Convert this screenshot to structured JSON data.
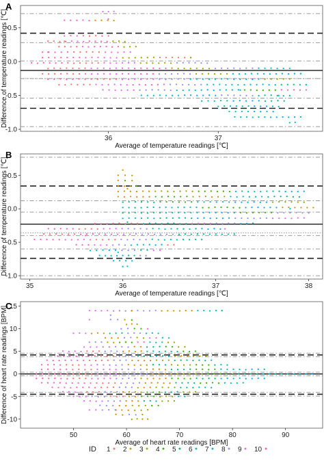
{
  "colors": {
    "ids": [
      "#F8766D",
      "#D89000",
      "#A3A500",
      "#39B600",
      "#00BF7D",
      "#00BFC4",
      "#00B0F6",
      "#9590FF",
      "#E76BF3",
      "#FF62BC"
    ],
    "mean_line": "#000000",
    "loa_line": "#222222",
    "ci_line": "#999999"
  },
  "legend": {
    "title": "ID",
    "labels": [
      "1",
      "2",
      "3",
      "4",
      "5",
      "6",
      "7",
      "8",
      "9",
      "10"
    ]
  },
  "chart_data": [
    {
      "panel": "A",
      "type": "scatter",
      "xlabel": "Average of temperature readings [℃]",
      "ylabel": "Difference of temperature readings [℃]",
      "xlim": [
        35.2,
        37.95
      ],
      "ylim": [
        -1.03,
        0.83
      ],
      "xticks": [
        36,
        37
      ],
      "yticks": [
        0.5,
        0.0,
        -0.5,
        -1.0
      ],
      "ytick_labels": [
        "0.5",
        "0.0",
        "-0.5",
        "-1.0"
      ],
      "lines": {
        "mean": -0.13,
        "loa": [
          0.42,
          -0.69
        ],
        "ci": [
          0.71,
          0.28,
          0.01,
          -0.25,
          -0.54,
          -0.96
        ],
        "mid_dotted": -0.25
      },
      "clusters": [
        {
          "x": 35.45,
          "y": 0.14,
          "id": 10
        },
        {
          "x": 35.6,
          "y": 0.3,
          "id": 1
        },
        {
          "x": 36.0,
          "y": 0.63,
          "id": 9
        },
        {
          "x": 36.75,
          "y": 0.06,
          "id": 3
        },
        {
          "x": 37.2,
          "y": -0.42,
          "id": 6
        },
        {
          "x": 37.55,
          "y": -0.5,
          "id": 7
        }
      ],
      "marker_rows": [
        {
          "y": 0.74,
          "from": 35.95,
          "to": 36.05,
          "ids": [
            9
          ]
        },
        {
          "y": 0.61,
          "from": 35.6,
          "to": 36.05,
          "ids": [
            10,
            2
          ]
        },
        {
          "y": 0.38,
          "from": 35.6,
          "to": 36.0,
          "ids": [
            9,
            1,
            10
          ]
        },
        {
          "y": 0.3,
          "from": 35.45,
          "to": 36.15,
          "ids": [
            1,
            9,
            10,
            3
          ]
        },
        {
          "y": 0.22,
          "from": 35.55,
          "to": 36.25,
          "ids": [
            1,
            9,
            10,
            3
          ]
        },
        {
          "y": 0.14,
          "from": 35.4,
          "to": 36.2,
          "ids": [
            10,
            1,
            9
          ]
        },
        {
          "y": 0.06,
          "from": 35.4,
          "to": 36.75,
          "ids": [
            10,
            9,
            3,
            1
          ]
        },
        {
          "y": -0.02,
          "from": 35.3,
          "to": 36.9,
          "ids": [
            10,
            1,
            9,
            3,
            8
          ]
        },
        {
          "y": -0.1,
          "from": 35.45,
          "to": 37.65,
          "ids": [
            1,
            9,
            10,
            3,
            8,
            6
          ]
        },
        {
          "y": -0.18,
          "from": 35.4,
          "to": 37.75,
          "ids": [
            1,
            9,
            10,
            8,
            3,
            6,
            7
          ]
        },
        {
          "y": -0.26,
          "from": 35.45,
          "to": 37.65,
          "ids": [
            10,
            1,
            9,
            8,
            6,
            7,
            3
          ]
        },
        {
          "y": -0.34,
          "from": 35.55,
          "to": 37.8,
          "ids": [
            1,
            9,
            10,
            8,
            6,
            7,
            5
          ]
        },
        {
          "y": -0.42,
          "from": 35.95,
          "to": 37.8,
          "ids": [
            9,
            8,
            6,
            7,
            4,
            10
          ]
        },
        {
          "y": -0.5,
          "from": 36.3,
          "to": 37.65,
          "ids": [
            6,
            7,
            8,
            5
          ]
        },
        {
          "y": -0.58,
          "from": 36.85,
          "to": 37.6,
          "ids": [
            6,
            7,
            5
          ]
        },
        {
          "y": -0.66,
          "from": 37.0,
          "to": 37.55,
          "ids": [
            6,
            7
          ]
        },
        {
          "y": -0.74,
          "from": 37.1,
          "to": 37.5,
          "ids": [
            6,
            7
          ]
        },
        {
          "y": -0.82,
          "from": 37.15,
          "to": 37.75,
          "ids": [
            6,
            7
          ]
        },
        {
          "y": -0.9,
          "from": 37.65,
          "to": 37.7,
          "ids": [
            6
          ]
        }
      ]
    },
    {
      "panel": "B",
      "type": "scatter",
      "xlabel": "Average of temperature readings [℃]",
      "ylabel": "Difference of temperature readings [℃]",
      "xlim": [
        34.9,
        38.15
      ],
      "ylim": [
        -1.05,
        0.82
      ],
      "xticks": [
        35,
        36,
        37,
        38
      ],
      "yticks": [
        0.5,
        0.0,
        -0.5,
        -1.0
      ],
      "ytick_labels": [
        "0.5",
        "0.0",
        "-0.5",
        "-1.0"
      ],
      "lines": {
        "mean": -0.23,
        "loa": [
          0.34,
          -0.74
        ],
        "ci": [
          0.77,
          0.12,
          -0.05,
          -0.4,
          -0.6,
          -1.0
        ],
        "mid_dotted": -0.36
      },
      "clusters": [
        {
          "x": 36.05,
          "y": 0.3,
          "id": 2
        },
        {
          "x": 36.05,
          "y": -0.2,
          "id": 5
        },
        {
          "x": 35.6,
          "y": -0.4,
          "id": 10
        },
        {
          "x": 35.95,
          "y": -0.65,
          "id": 6
        },
        {
          "x": 37.8,
          "y": 0.0,
          "id": 6
        },
        {
          "x": 37.1,
          "y": -0.3,
          "id": 9
        }
      ],
      "marker_rows": [
        {
          "y": 0.58,
          "from": 36.0,
          "to": 36.0,
          "ids": [
            2
          ]
        },
        {
          "y": 0.5,
          "from": 35.95,
          "to": 36.1,
          "ids": [
            2,
            3
          ]
        },
        {
          "y": 0.42,
          "from": 35.95,
          "to": 36.1,
          "ids": [
            2,
            4,
            3
          ]
        },
        {
          "y": 0.34,
          "from": 35.95,
          "to": 36.15,
          "ids": [
            2,
            3,
            4
          ]
        },
        {
          "y": 0.26,
          "from": 35.95,
          "to": 37.95,
          "ids": [
            2,
            3,
            4,
            6,
            7
          ]
        },
        {
          "y": 0.18,
          "from": 35.95,
          "to": 37.9,
          "ids": [
            2,
            4,
            3,
            6,
            5
          ]
        },
        {
          "y": 0.1,
          "from": 36.0,
          "to": 37.95,
          "ids": [
            5,
            4,
            6,
            7,
            3
          ]
        },
        {
          "y": 0.02,
          "from": 36.0,
          "to": 38.05,
          "ids": [
            5,
            6,
            4,
            7,
            2
          ]
        },
        {
          "y": -0.06,
          "from": 36.0,
          "to": 38.0,
          "ids": [
            5,
            6,
            7,
            4,
            8
          ]
        },
        {
          "y": -0.14,
          "from": 36.0,
          "to": 37.95,
          "ids": [
            6,
            5,
            7,
            8,
            9
          ]
        },
        {
          "y": -0.22,
          "from": 35.7,
          "to": 37.4,
          "ids": [
            10,
            1,
            6,
            5,
            9,
            8,
            7
          ]
        },
        {
          "y": -0.3,
          "from": 35.2,
          "to": 37.05,
          "ids": [
            10,
            1,
            9,
            8,
            6,
            5,
            7
          ]
        },
        {
          "y": -0.38,
          "from": 35.15,
          "to": 37.2,
          "ids": [
            1,
            10,
            9,
            8,
            5,
            6
          ]
        },
        {
          "y": -0.46,
          "from": 35.05,
          "to": 36.85,
          "ids": [
            10,
            9,
            1,
            8,
            6,
            5
          ]
        },
        {
          "y": -0.54,
          "from": 35.5,
          "to": 36.55,
          "ids": [
            10,
            9,
            8,
            6,
            7,
            1
          ]
        },
        {
          "y": -0.62,
          "from": 35.65,
          "to": 36.4,
          "ids": [
            6,
            7,
            8,
            5,
            9
          ]
        },
        {
          "y": -0.7,
          "from": 35.75,
          "to": 36.25,
          "ids": [
            6,
            7,
            5,
            8
          ]
        },
        {
          "y": -0.78,
          "from": 35.9,
          "to": 36.1,
          "ids": [
            6,
            7
          ]
        },
        {
          "y": -0.86,
          "from": 36.0,
          "to": 36.05,
          "ids": [
            6
          ]
        }
      ]
    },
    {
      "panel": "C",
      "type": "scatter",
      "xlabel": "Average of heart rate readings [BPM]",
      "ylabel": "Difference of heart rate readings [BPM]",
      "xlim": [
        40,
        97
      ],
      "ylim": [
        -12,
        16
      ],
      "xticks": [
        50,
        60,
        70,
        80,
        90
      ],
      "yticks": [
        15,
        10,
        5,
        0,
        -5,
        -10
      ],
      "ytick_labels": [
        "15",
        "10",
        "5",
        "0",
        "-5",
        "-10"
      ],
      "lines": {
        "mean": 0.0,
        "loa": [
          4.2,
          -4.5
        ],
        "ci": [
          4.6,
          3.8,
          0.4,
          -0.4,
          -4.1,
          -4.9
        ],
        "mid_dotted": 0.0
      },
      "clusters": [
        {
          "x": 61,
          "y": 14,
          "id": 2
        },
        {
          "x": 57,
          "y": 13,
          "id": 8
        },
        {
          "x": 53,
          "y": 12,
          "id": 9
        },
        {
          "x": 78,
          "y": 14,
          "id": 6
        },
        {
          "x": 58,
          "y": -8,
          "id": 2
        },
        {
          "x": 64,
          "y": -10,
          "id": 3
        }
      ],
      "marker_rows": [
        {
          "y": 14,
          "from": 53,
          "to": 78,
          "ids": [
            9,
            8,
            2,
            6
          ]
        },
        {
          "y": 12,
          "from": 57,
          "to": 61,
          "ids": [
            8,
            2,
            4
          ]
        },
        {
          "y": 11,
          "from": 60,
          "to": 62,
          "ids": [
            2,
            3
          ]
        },
        {
          "y": 10,
          "from": 59,
          "to": 64,
          "ids": [
            8,
            4,
            9
          ]
        },
        {
          "y": 9,
          "from": 50,
          "to": 66,
          "ids": [
            9,
            2,
            5,
            8,
            6
          ]
        },
        {
          "y": 8,
          "from": 56,
          "to": 68,
          "ids": [
            2,
            8,
            3,
            9,
            6
          ]
        },
        {
          "y": 7,
          "from": 53,
          "to": 69,
          "ids": [
            8,
            2,
            4,
            9,
            6,
            3
          ]
        },
        {
          "y": 6,
          "from": 52,
          "to": 71,
          "ids": [
            9,
            1,
            8,
            2,
            5,
            4,
            3
          ]
        },
        {
          "y": 5,
          "from": 48,
          "to": 73,
          "ids": [
            9,
            1,
            8,
            2,
            6,
            5,
            4
          ]
        },
        {
          "y": 4,
          "from": 47,
          "to": 75,
          "ids": [
            9,
            10,
            1,
            8,
            5,
            6,
            2,
            3
          ]
        },
        {
          "y": 3,
          "from": 45,
          "to": 76,
          "ids": [
            10,
            9,
            1,
            8,
            2,
            3,
            5,
            6
          ]
        },
        {
          "y": 2,
          "from": 44,
          "to": 79,
          "ids": [
            10,
            1,
            9,
            8,
            2,
            5,
            3,
            4,
            6
          ]
        },
        {
          "y": 1,
          "from": 44,
          "to": 86,
          "ids": [
            10,
            1,
            9,
            8,
            2,
            5,
            4,
            6,
            7
          ]
        },
        {
          "y": 0,
          "from": 43,
          "to": 95,
          "ids": [
            10,
            1,
            9,
            8,
            2,
            3,
            4,
            5,
            6,
            7
          ]
        },
        {
          "y": -1,
          "from": 43,
          "to": 86,
          "ids": [
            10,
            1,
            9,
            8,
            2,
            4,
            5,
            6,
            7
          ]
        },
        {
          "y": -2,
          "from": 44,
          "to": 82,
          "ids": [
            10,
            9,
            1,
            8,
            2,
            5,
            4,
            6
          ]
        },
        {
          "y": -3,
          "from": 46,
          "to": 76,
          "ids": [
            9,
            10,
            1,
            8,
            2,
            3,
            5,
            6
          ]
        },
        {
          "y": -4,
          "from": 48,
          "to": 73,
          "ids": [
            9,
            1,
            8,
            2,
            4,
            5,
            3
          ]
        },
        {
          "y": -5,
          "from": 50,
          "to": 71,
          "ids": [
            9,
            8,
            1,
            2,
            4,
            3,
            6
          ]
        },
        {
          "y": -6,
          "from": 52,
          "to": 69,
          "ids": [
            9,
            8,
            2,
            5,
            3
          ]
        },
        {
          "y": -7,
          "from": 55,
          "to": 66,
          "ids": [
            8,
            2,
            3,
            4
          ]
        },
        {
          "y": -8,
          "from": 53,
          "to": 64,
          "ids": [
            9,
            8,
            2,
            3
          ]
        },
        {
          "y": -9,
          "from": 58,
          "to": 63,
          "ids": [
            2,
            8,
            3
          ]
        },
        {
          "y": -10,
          "from": 61,
          "to": 63,
          "ids": [
            3,
            2
          ]
        }
      ]
    }
  ]
}
